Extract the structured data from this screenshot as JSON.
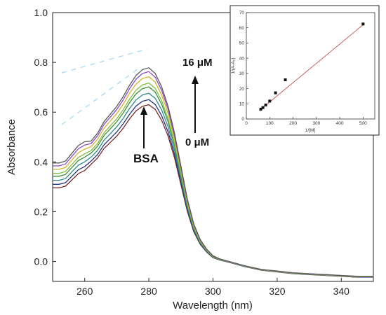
{
  "chart_data": [
    {
      "type": "line",
      "xlabel": "Wavelength (nm)",
      "ylabel": "Absorbance",
      "xlim": [
        250,
        350
      ],
      "ylim": [
        -0.08,
        1.0
      ],
      "xticks": [
        260,
        280,
        300,
        320,
        340
      ],
      "yticks": [
        0.0,
        0.2,
        0.4,
        0.6,
        0.8,
        1.0
      ],
      "ytick_labels": [
        "0.0",
        "0.2",
        "0.4",
        "0.6",
        "0.8",
        "1.0"
      ],
      "grid": false,
      "annotations": {
        "top": "16 μM",
        "bottom": "0 μM",
        "peak_label": "BSA"
      },
      "peak_absorbance": [
        0.63,
        0.65,
        0.675,
        0.7,
        0.715,
        0.74,
        0.76,
        0.775
      ],
      "series_colors": [
        "#7a2b2b",
        "#24347d",
        "#2e8b8b",
        "#3f8f3f",
        "#7fbf3f",
        "#d2b42a",
        "#8a4ec8",
        "#5a5a5a"
      ],
      "x": [
        250,
        252,
        254,
        256,
        258,
        260,
        262,
        264,
        266,
        268,
        270,
        272,
        274,
        276,
        278,
        280,
        282,
        284,
        286,
        288,
        290,
        292,
        294,
        296,
        298,
        300,
        302,
        304,
        306,
        308,
        310,
        315,
        320,
        325,
        330,
        335,
        340,
        345,
        350
      ]
    },
    {
      "type": "scatter",
      "xlabel": "1/[M]",
      "ylabel": "1/(A-A₀)",
      "xlim": [
        0,
        550
      ],
      "ylim": [
        0,
        70
      ],
      "xticks": [
        0,
        100,
        200,
        300,
        400,
        500
      ],
      "yticks": [
        0,
        10,
        20,
        30,
        40,
        50,
        60,
        70
      ],
      "points": [
        {
          "x": 62,
          "y": 6.5
        },
        {
          "x": 71,
          "y": 7.5
        },
        {
          "x": 83,
          "y": 9.2
        },
        {
          "x": 100,
          "y": 11.8
        },
        {
          "x": 125,
          "y": 17.2
        },
        {
          "x": 167,
          "y": 25.8
        },
        {
          "x": 500,
          "y": 62.5
        }
      ],
      "fit_line": {
        "x": [
          55,
          500
        ],
        "y": [
          5.5,
          62
        ]
      },
      "marker_color": "#111111",
      "fit_color": "#c0504d"
    }
  ]
}
